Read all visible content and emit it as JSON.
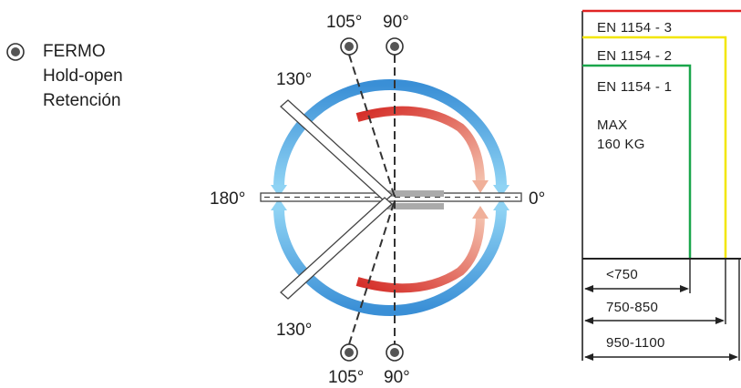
{
  "legend": {
    "icon": "hold-open-radio-icon",
    "lines": [
      "FERMO",
      "Hold-open",
      "Retención"
    ]
  },
  "angles": {
    "top_105": "105°",
    "top_90": "90°",
    "bottom_105": "105°",
    "bottom_90": "90°",
    "upper_130": "130°",
    "lower_130": "130°",
    "left_180": "180°",
    "right_0": "0°"
  },
  "classes": [
    {
      "label": "EN 1154 - 3",
      "color": "#e02424"
    },
    {
      "label": "EN 1154 - 2",
      "color": "#f2e600"
    },
    {
      "label": "EN 1154 - 1",
      "color": "#1aa64b"
    }
  ],
  "max_weight": [
    "MAX",
    "160 KG"
  ],
  "widths": [
    "<750",
    "750-850",
    "950-1100"
  ],
  "colors": {
    "arc_light": "#8fd3f4",
    "arc_dark": "#3a8fd6",
    "arc_red_start": "#d42a25",
    "arc_red_end": "#f0b09a",
    "door_bar": "#aaaaaa"
  }
}
